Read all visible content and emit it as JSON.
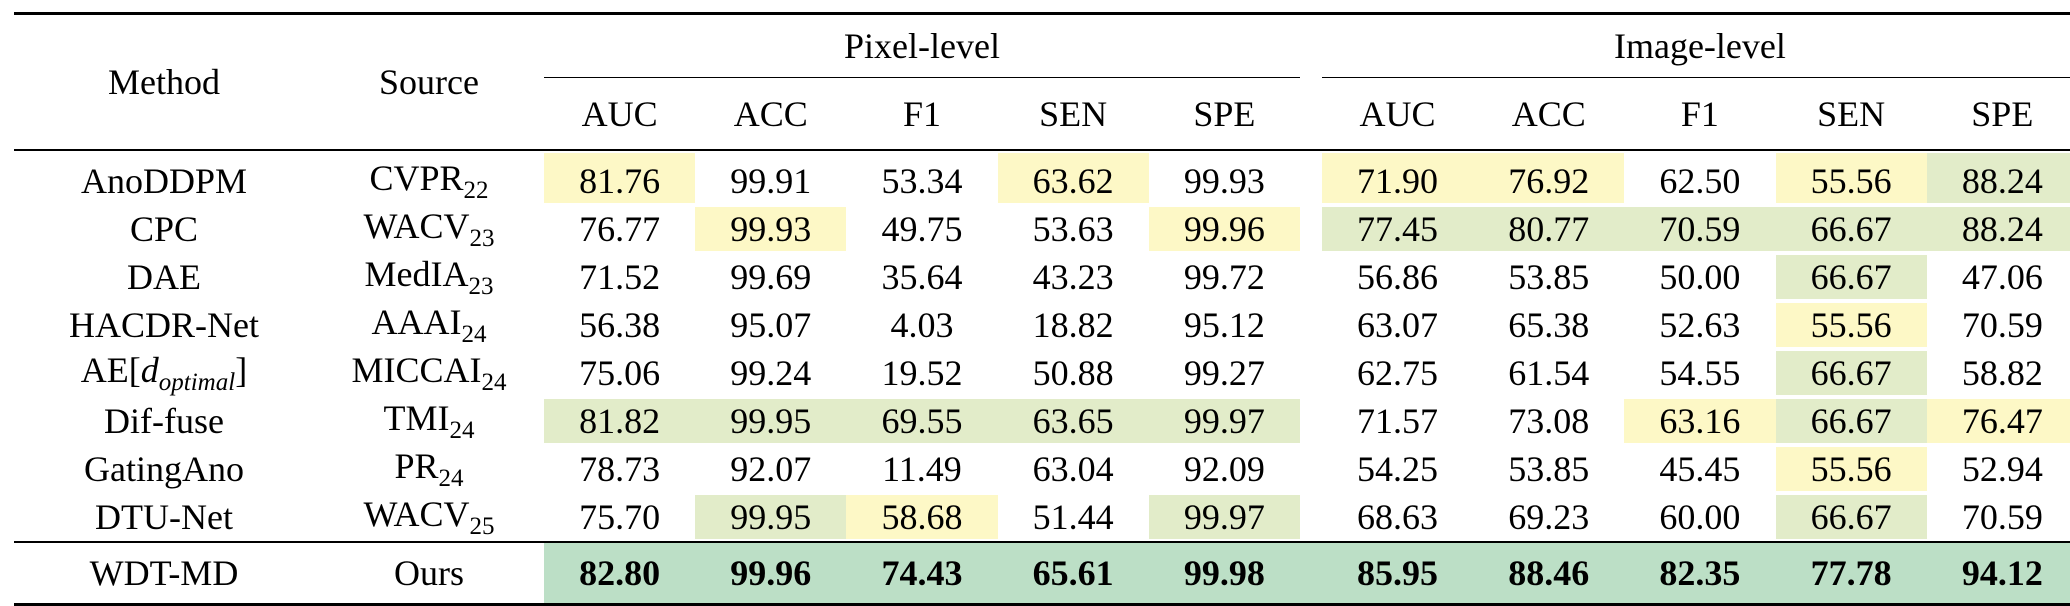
{
  "table": {
    "headers": {
      "method": "Method",
      "source": "Source",
      "groups": [
        "Pixel-level",
        "Image-level"
      ],
      "metrics": [
        "AUC",
        "ACC",
        "F1",
        "SEN",
        "SPE",
        "AUC",
        "ACC",
        "F1",
        "SEN",
        "SPE"
      ]
    },
    "rows": [
      {
        "method": "AnoDDPM",
        "source_base": "CVPR",
        "source_sub": "22",
        "values": [
          "81.76",
          "99.91",
          "53.34",
          "63.62",
          "99.93",
          "71.90",
          "76.92",
          "62.50",
          "55.56",
          "88.24"
        ],
        "highlights": [
          "y",
          "",
          "",
          "y",
          "",
          "y",
          "y",
          "",
          "y",
          "g"
        ]
      },
      {
        "method": "CPC",
        "source_base": "WACV",
        "source_sub": "23",
        "values": [
          "76.77",
          "99.93",
          "49.75",
          "53.63",
          "99.96",
          "77.45",
          "80.77",
          "70.59",
          "66.67",
          "88.24"
        ],
        "highlights": [
          "",
          "y",
          "",
          "",
          "y",
          "g",
          "g",
          "g",
          "g",
          "g"
        ]
      },
      {
        "method": "DAE",
        "source_base": "MedIA",
        "source_sub": "23",
        "values": [
          "71.52",
          "99.69",
          "35.64",
          "43.23",
          "99.72",
          "56.86",
          "53.85",
          "50.00",
          "66.67",
          "47.06"
        ],
        "highlights": [
          "",
          "",
          "",
          "",
          "",
          "",
          "",
          "",
          "g",
          ""
        ]
      },
      {
        "method": "HACDR-Net",
        "source_base": "AAAI",
        "source_sub": "24",
        "values": [
          "56.38",
          "95.07",
          "4.03",
          "18.82",
          "95.12",
          "63.07",
          "65.38",
          "52.63",
          "55.56",
          "70.59"
        ],
        "highlights": [
          "",
          "",
          "",
          "",
          "",
          "",
          "",
          "",
          "y",
          ""
        ]
      },
      {
        "method_base": "AE[",
        "method_var": "d",
        "method_var_sub": "optimal",
        "method_end": "]",
        "source_base": "MICCAI",
        "source_sub": "24",
        "values": [
          "75.06",
          "99.24",
          "19.52",
          "50.88",
          "99.27",
          "62.75",
          "61.54",
          "54.55",
          "66.67",
          "58.82"
        ],
        "highlights": [
          "",
          "",
          "",
          "",
          "",
          "",
          "",
          "",
          "g",
          ""
        ]
      },
      {
        "method": "Dif-fuse",
        "source_base": "TMI",
        "source_sub": "24",
        "values": [
          "81.82",
          "99.95",
          "69.55",
          "63.65",
          "99.97",
          "71.57",
          "73.08",
          "63.16",
          "66.67",
          "76.47"
        ],
        "highlights": [
          "g",
          "g",
          "g",
          "g",
          "g",
          "",
          "",
          "y",
          "g",
          "y"
        ]
      },
      {
        "method": "GatingAno",
        "source_base": "PR",
        "source_sub": "24",
        "values": [
          "78.73",
          "92.07",
          "11.49",
          "63.04",
          "92.09",
          "54.25",
          "53.85",
          "45.45",
          "55.56",
          "52.94"
        ],
        "highlights": [
          "",
          "",
          "",
          "",
          "",
          "",
          "",
          "",
          "y",
          ""
        ]
      },
      {
        "method": "DTU-Net",
        "source_base": "WACV",
        "source_sub": "25",
        "values": [
          "75.70",
          "99.95",
          "58.68",
          "51.44",
          "99.97",
          "68.63",
          "69.23",
          "60.00",
          "66.67",
          "70.59"
        ],
        "highlights": [
          "",
          "g",
          "y",
          "",
          "g",
          "",
          "",
          "",
          "g",
          ""
        ]
      }
    ],
    "best": {
      "method": "WDT-MD",
      "source": "Ours",
      "values": [
        "82.80",
        "99.96",
        "74.43",
        "65.61",
        "99.98",
        "85.95",
        "88.46",
        "82.35",
        "77.78",
        "94.12"
      ]
    }
  },
  "colors": {
    "second_best_yellow": "#fdf8c6",
    "second_best_green": "#e2ecc9",
    "best_green": "#bcdfc6"
  }
}
